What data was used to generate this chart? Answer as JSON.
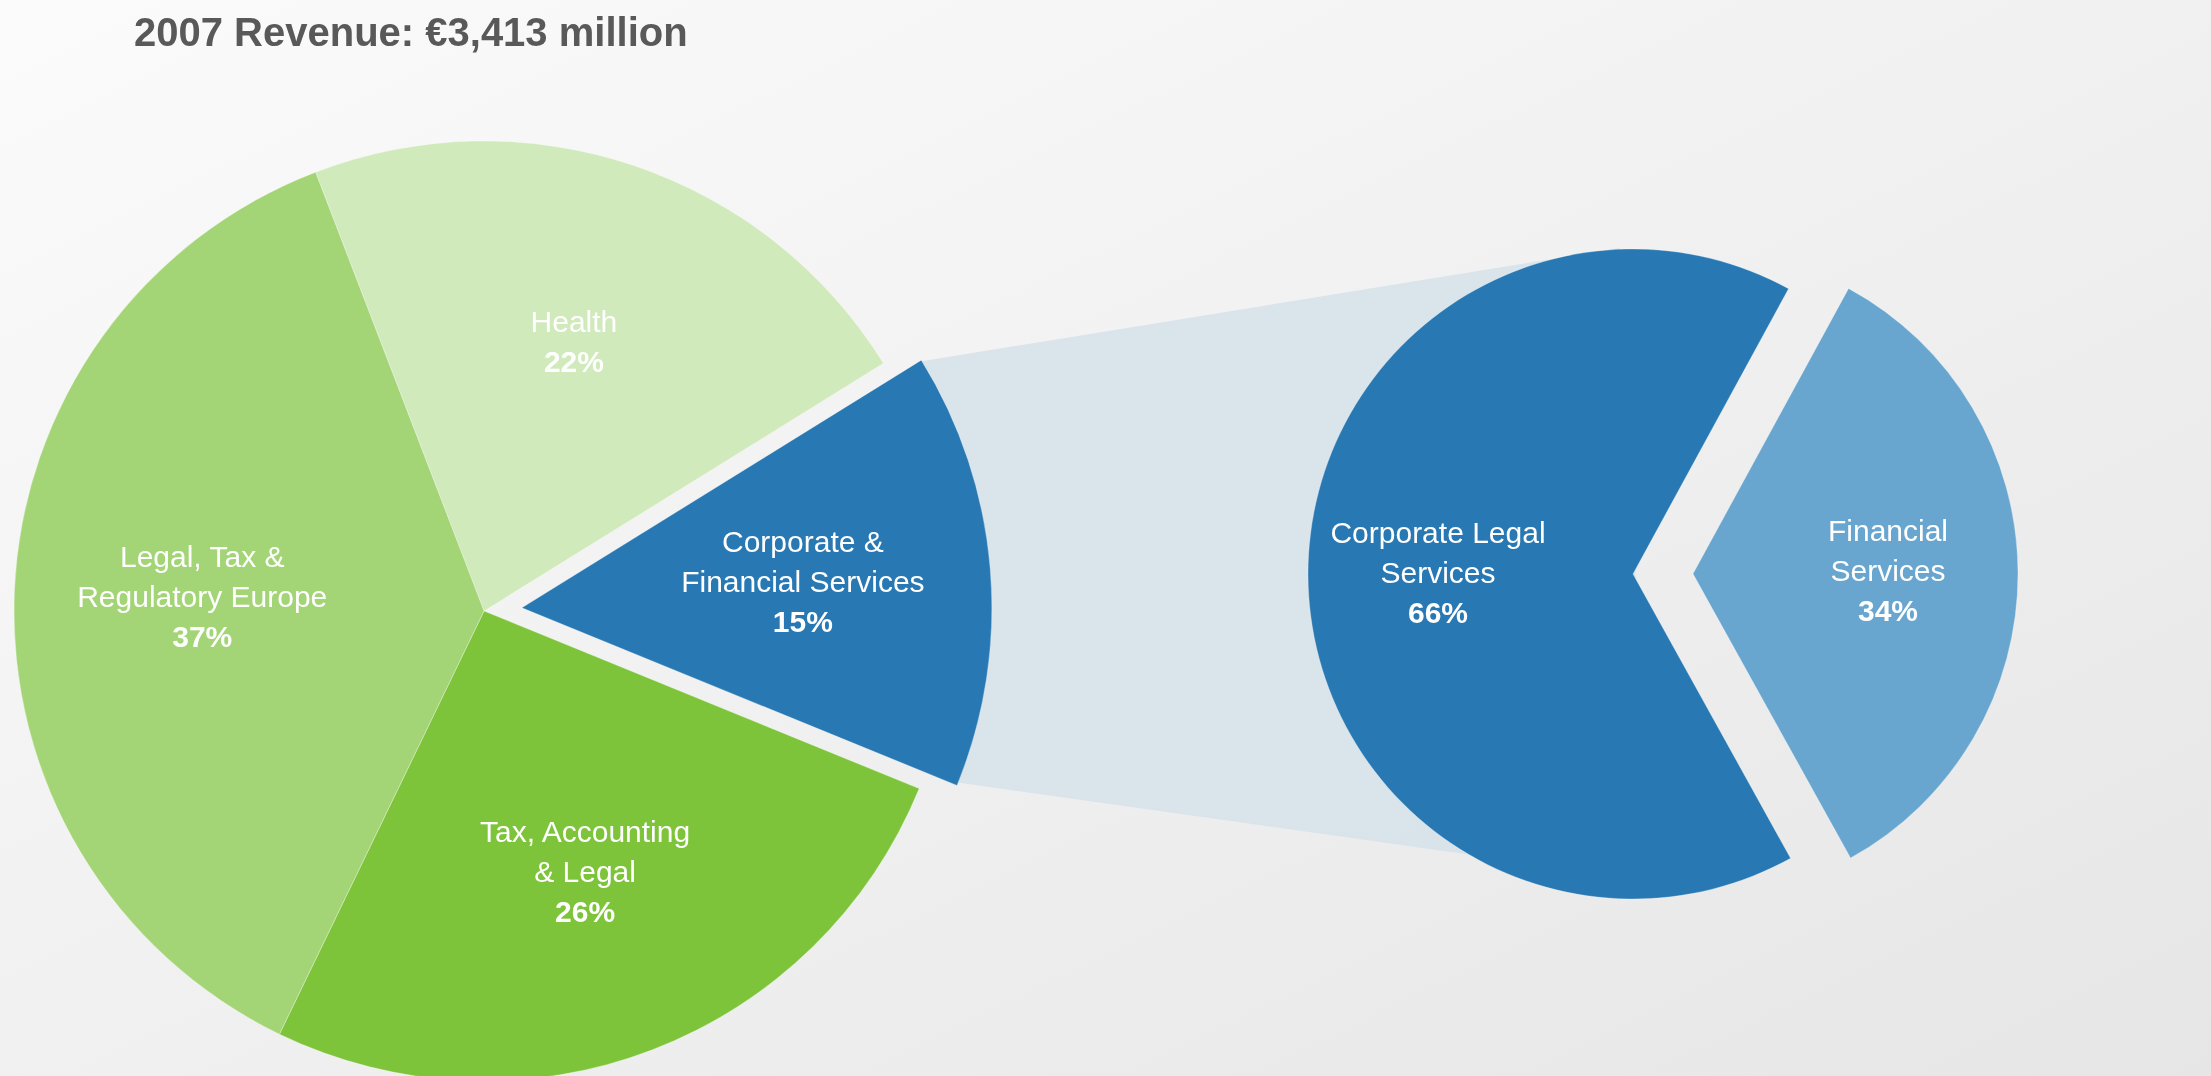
{
  "chart_data": [
    {
      "type": "pie",
      "title": "2007 Revenue: €3,413 million",
      "categories": [
        "Health",
        "Corporate &\nFinancial Services",
        "Tax, Accounting\n& Legal",
        "Legal, Tax &\nRegulatory Europe"
      ],
      "values": [
        22,
        15,
        26,
        37
      ],
      "value_labels": [
        "22%",
        "15%",
        "26%",
        "37%"
      ],
      "colors": [
        "#d0eabb",
        "#2878b3",
        "#7dc43a",
        "#a3d475"
      ]
    },
    {
      "type": "pie",
      "categories": [
        "Corporate Legal\nServices",
        "Financial\nServices"
      ],
      "values": [
        66,
        34
      ],
      "value_labels": [
        "66%",
        "34%"
      ],
      "colors": [
        "#2878b3",
        "#68a6cf"
      ]
    }
  ]
}
